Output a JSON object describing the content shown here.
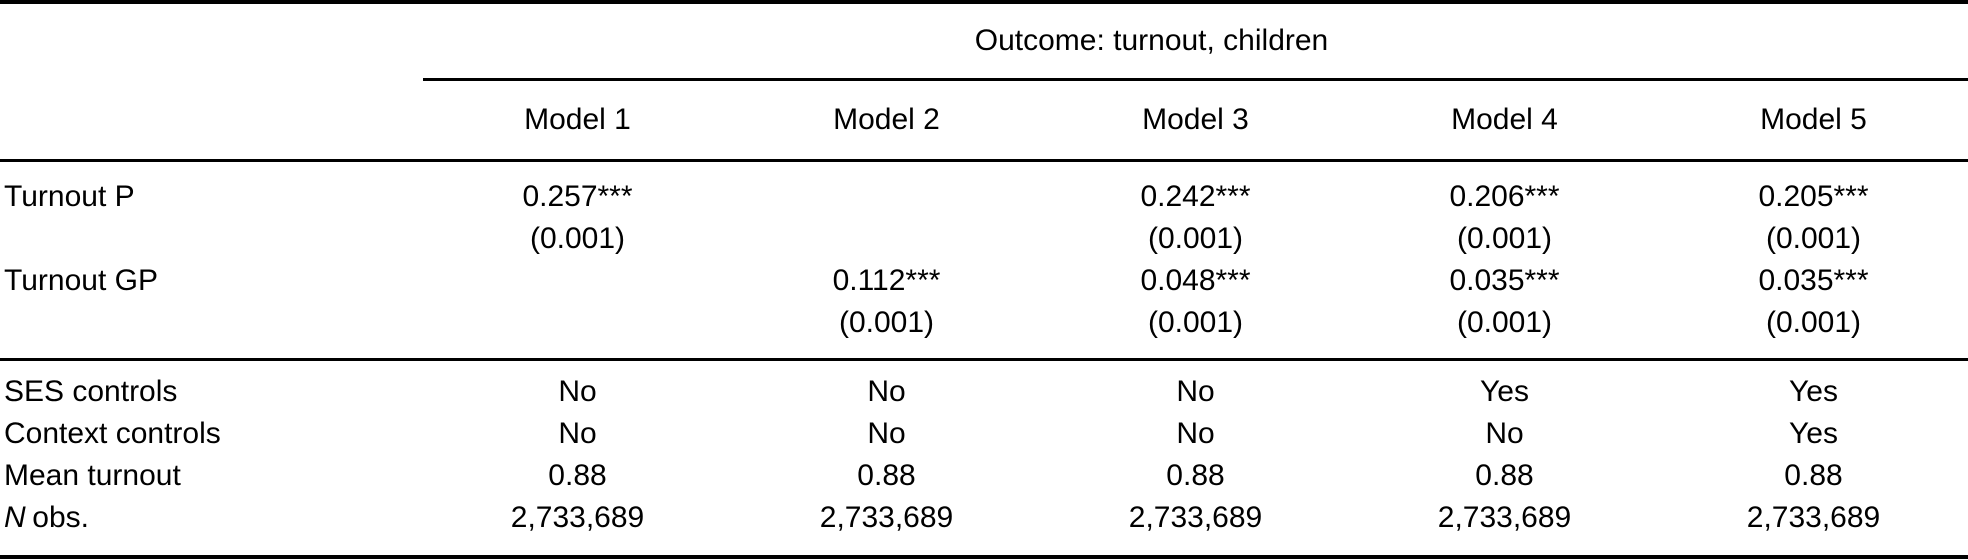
{
  "table": {
    "spanner_heading": "Outcome: turnout, children",
    "column_headers": [
      "Model 1",
      "Model 2",
      "Model 3",
      "Model 4",
      "Model 5"
    ],
    "coefficients": [
      {
        "label": "Turnout P",
        "estimates": [
          "0.257***",
          "",
          "0.242***",
          "0.206***",
          "0.205***"
        ],
        "std_errors": [
          "(0.001)",
          "",
          "(0.001)",
          "(0.001)",
          "(0.001)"
        ]
      },
      {
        "label": "Turnout GP",
        "estimates": [
          "",
          "0.112***",
          "0.048***",
          "0.035***",
          "0.035***"
        ],
        "std_errors": [
          "",
          "(0.001)",
          "(0.001)",
          "(0.001)",
          "(0.001)"
        ]
      }
    ],
    "summary_rows": [
      {
        "label": "SES controls",
        "values": [
          "No",
          "No",
          "No",
          "Yes",
          "Yes"
        ]
      },
      {
        "label": "Context controls",
        "values": [
          "No",
          "No",
          "No",
          "No",
          "Yes"
        ]
      },
      {
        "label": "Mean turnout",
        "values": [
          "0.88",
          "0.88",
          "0.88",
          "0.88",
          "0.88"
        ]
      },
      {
        "label_italic": "N",
        "label_rest": "obs.",
        "values": [
          "2,733,689",
          "2,733,689",
          "2,733,689",
          "2,733,689",
          "2,733,689"
        ]
      }
    ]
  }
}
